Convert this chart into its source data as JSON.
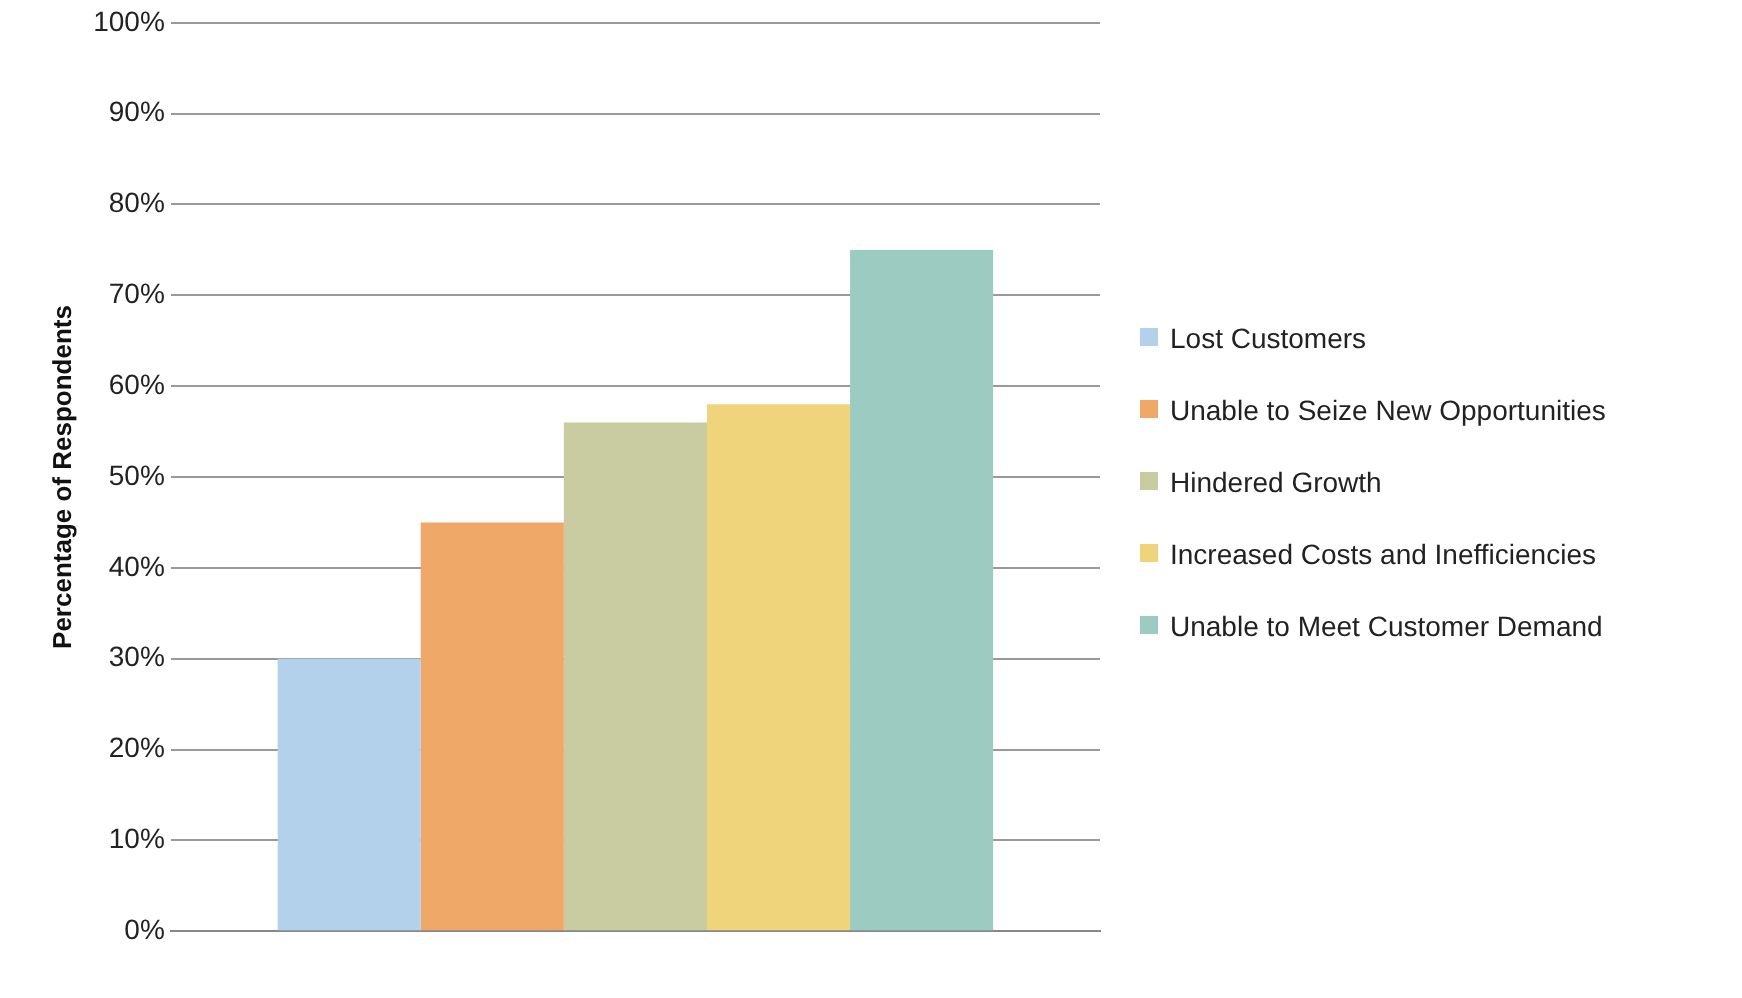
{
  "chart_data": {
    "type": "bar",
    "ylabel": "Percentage of Respondents",
    "categories": [
      null
    ],
    "series": [
      {
        "name": "Lost Customers",
        "color": "#b3d1ea",
        "values": [
          30
        ]
      },
      {
        "name": "Unable to Seize New Opportunities",
        "color": "#f0a868",
        "values": [
          45
        ]
      },
      {
        "name": "Hindered Growth",
        "color": "#c8cca0",
        "values": [
          56
        ]
      },
      {
        "name": "Increased Costs and Inefficiencies",
        "color": "#f0d47c",
        "values": [
          58
        ]
      },
      {
        "name": "Unable to Meet Customer Demand",
        "color": "#9ccbc2",
        "values": [
          75
        ]
      }
    ],
    "ylim": [
      0,
      100
    ],
    "yticks": [
      {
        "value": 0,
        "label": "0%"
      },
      {
        "value": 10,
        "label": "10%"
      },
      {
        "value": 20,
        "label": "20%"
      },
      {
        "value": 30,
        "label": "30%"
      },
      {
        "value": 40,
        "label": "40%"
      },
      {
        "value": 50,
        "label": "50%"
      },
      {
        "value": 60,
        "label": "60%"
      },
      {
        "value": 70,
        "label": "70%"
      },
      {
        "value": 80,
        "label": "80%"
      },
      {
        "value": 90,
        "label": "90%"
      },
      {
        "value": 100,
        "label": "100%"
      }
    ],
    "grid": "y",
    "legend": "right"
  }
}
